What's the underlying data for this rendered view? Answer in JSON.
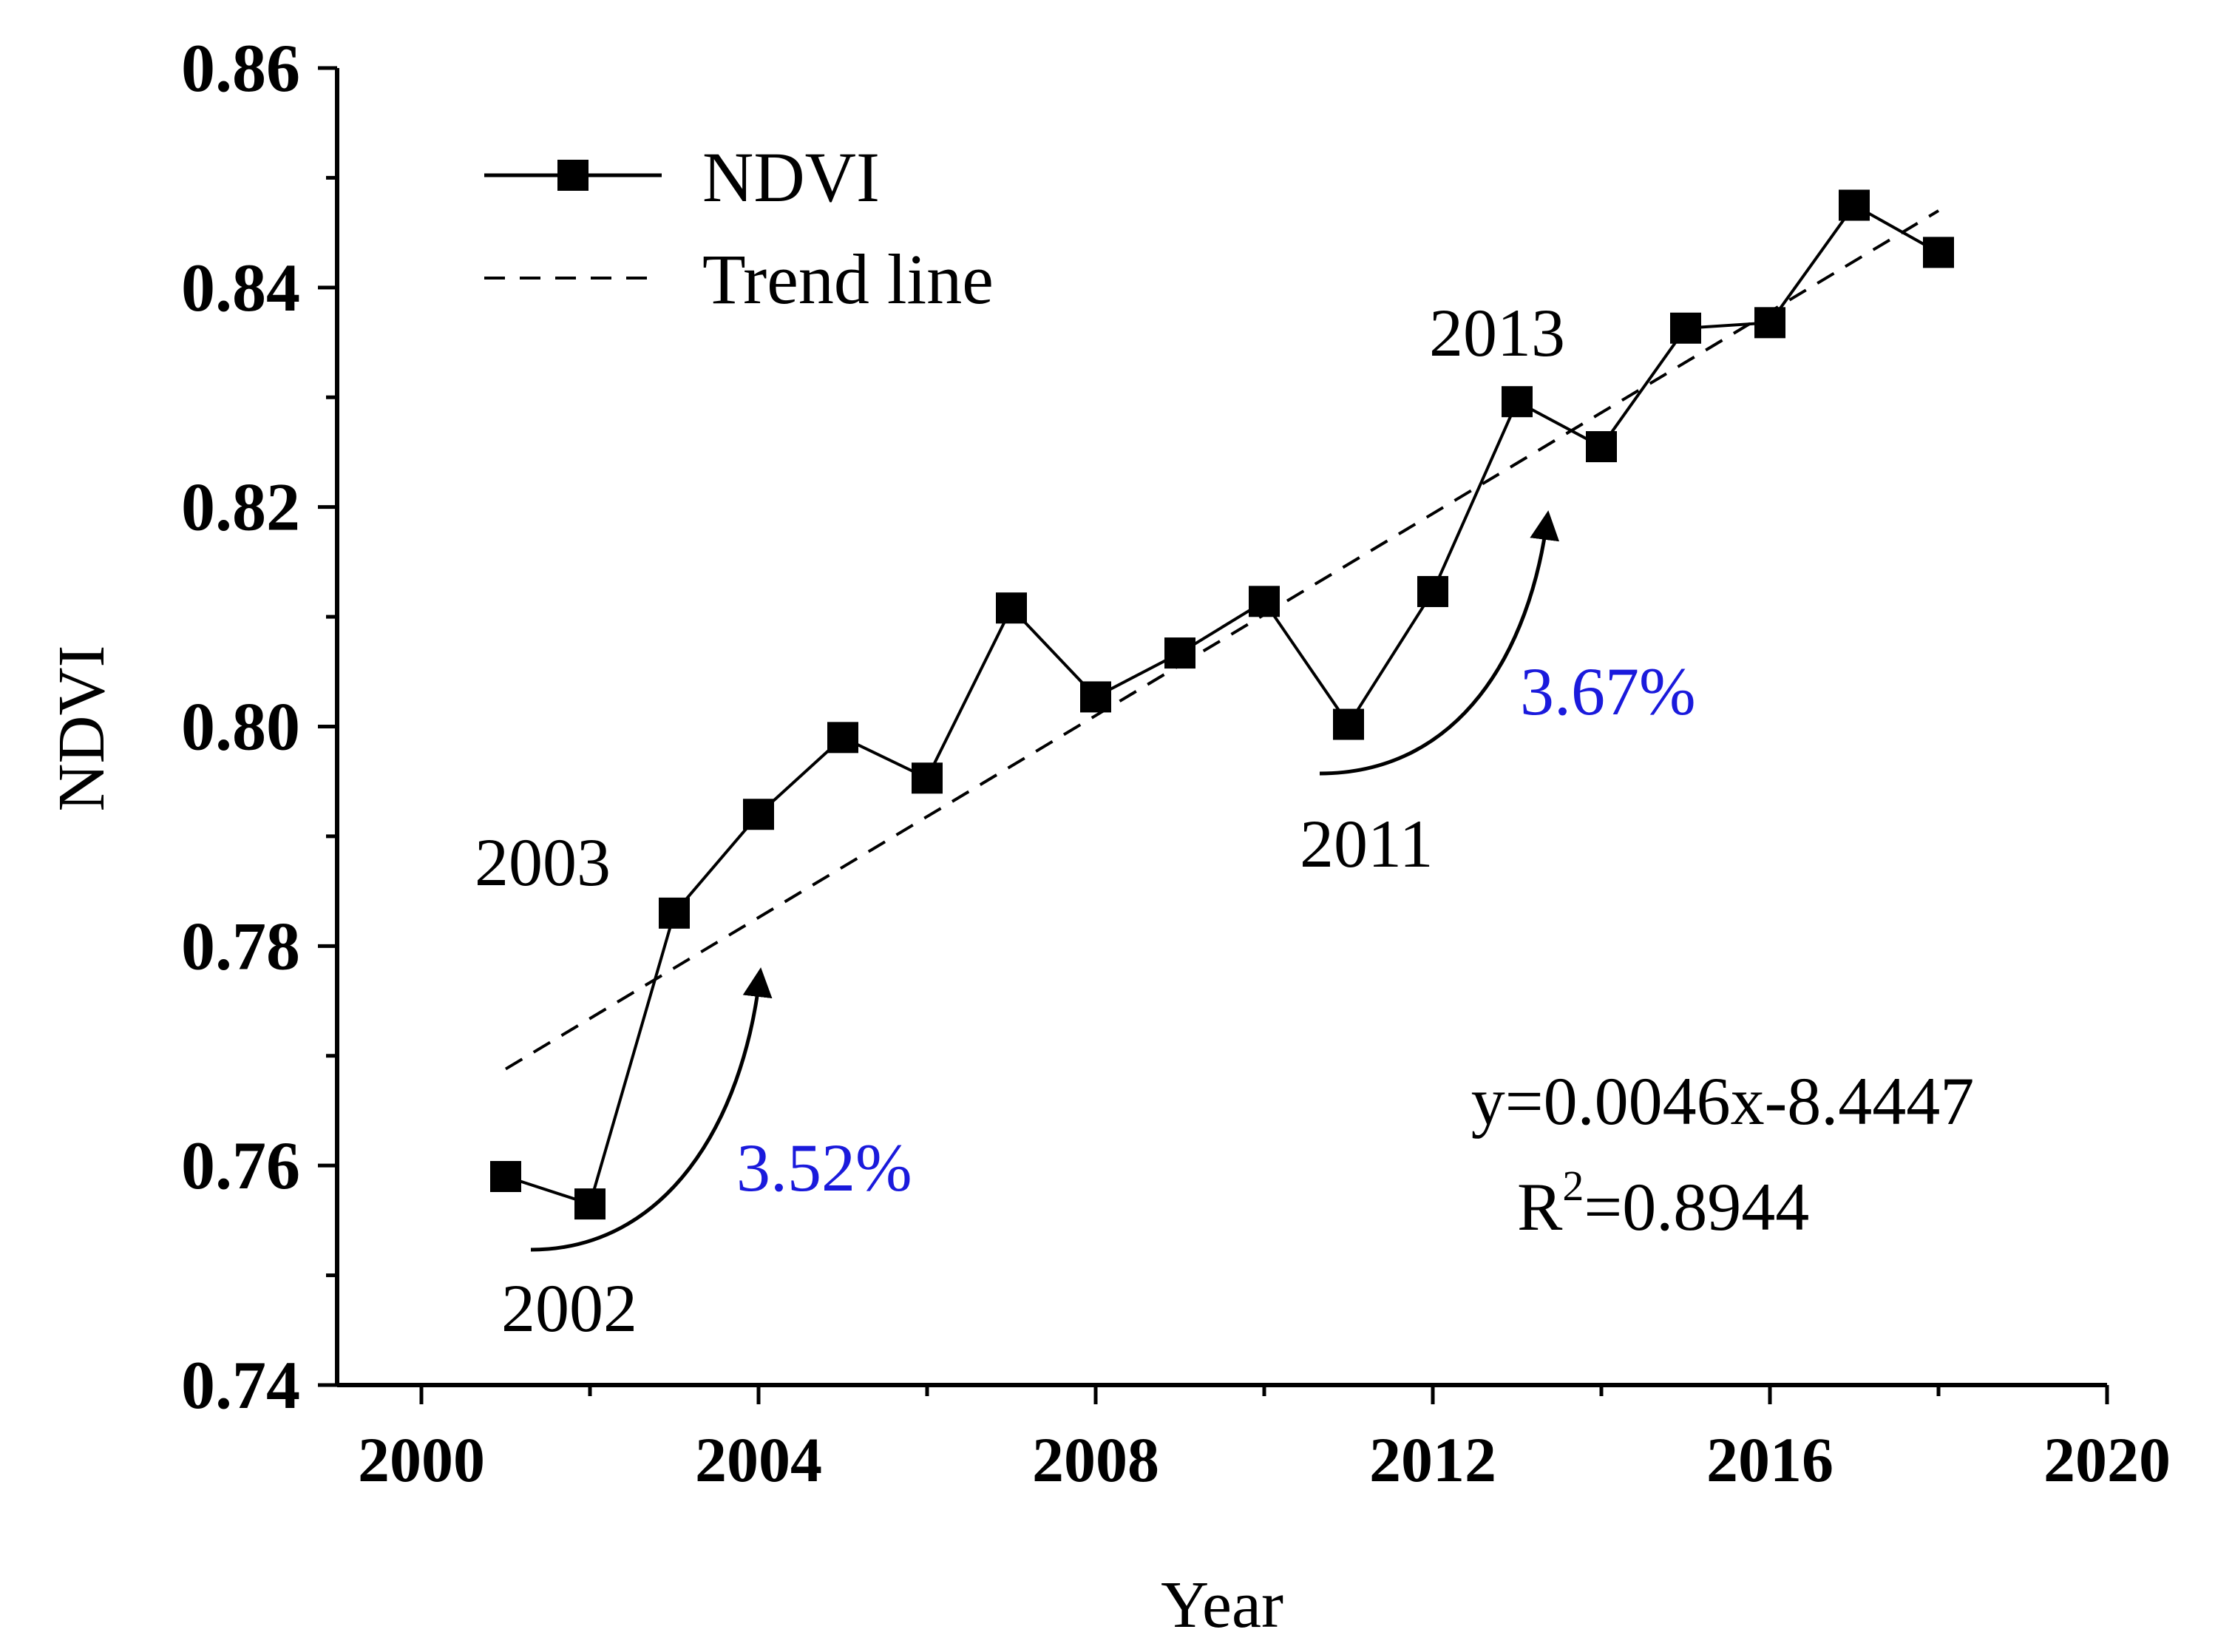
{
  "chart_data": {
    "type": "line",
    "xlabel": "Year",
    "ylabel": "NDVI",
    "xlim": [
      1999,
      2020
    ],
    "ylim": [
      0.74,
      0.86
    ],
    "x_ticks": [
      "2000",
      "2004",
      "2008",
      "2012",
      "2016",
      "2020"
    ],
    "y_ticks": [
      "0.74",
      "0.76",
      "0.78",
      "0.80",
      "0.82",
      "0.84",
      "0.86"
    ],
    "legend": {
      "position": "top-left",
      "entries": [
        {
          "label": "NDVI",
          "style": "line-square-marker"
        },
        {
          "label": "Trend line",
          "style": "dashed"
        }
      ]
    },
    "series": [
      {
        "name": "NDVI",
        "x": [
          2001,
          2002,
          2003,
          2004,
          2005,
          2006,
          2007,
          2008,
          2009,
          2010,
          2011,
          2012,
          2013,
          2014,
          2015,
          2016,
          2017,
          2018
        ],
        "values": [
          0.759,
          0.7565,
          0.783,
          0.792,
          0.799,
          0.7953,
          0.8108,
          0.8027,
          0.8067,
          0.8114,
          0.8002,
          0.8123,
          0.8296,
          0.8255,
          0.8363,
          0.8368,
          0.8475,
          0.8432
        ]
      },
      {
        "name": "Trend line",
        "x": [
          2001,
          2018
        ],
        "values": [
          0.7688,
          0.847
        ]
      }
    ],
    "annotations": {
      "year_labels": [
        "2003",
        "2002",
        "2011",
        "2013"
      ],
      "percent_labels": [
        "3.52%",
        "3.67%"
      ],
      "equation": "y=0.0046x-8.4447",
      "r2_prefix": "R",
      "r2_sup": "2",
      "r2_value": "=0.8944"
    },
    "colors": {
      "line": "#000000",
      "percent_text": "#1a1adc"
    }
  }
}
